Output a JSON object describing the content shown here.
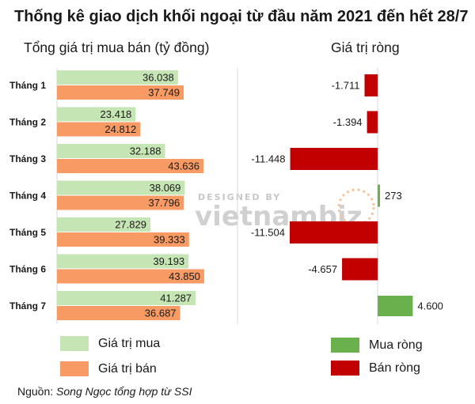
{
  "title": "Thống kê giao dịch khối ngoại từ đầu năm 2021 đến hết 28/7",
  "left_subtitle": "Tổng giá trị mua bán (tỷ đồng)",
  "right_subtitle": "Giá trị ròng",
  "watermark": {
    "top": "DESIGNED BY",
    "brand": "vietnambiz"
  },
  "source": {
    "label": "Nguồn:",
    "text": "Song Ngọc tổng hợp từ SSI"
  },
  "legend_left": [
    {
      "label": "Giá trị mua",
      "color": "#c6e5b5"
    },
    {
      "label": "Giá trị bán",
      "color": "#f79a63"
    }
  ],
  "legend_right": [
    {
      "label": "Mua ròng",
      "color": "#6ab04c"
    },
    {
      "label": "Bán ròng",
      "color": "#c20000"
    }
  ],
  "chart_data": [
    {
      "type": "bar",
      "orientation": "horizontal",
      "subtitle": "Tổng giá trị mua bán (tỷ đồng)",
      "categories": [
        "Tháng 1",
        "Tháng 2",
        "Tháng 3",
        "Tháng 4",
        "Tháng 5",
        "Tháng 6",
        "Tháng 7"
      ],
      "series": [
        {
          "name": "Giá trị mua",
          "color": "#c6e5b5",
          "values": [
            36038,
            23418,
            32188,
            38069,
            27829,
            39193,
            41287
          ],
          "labels": [
            "36.038",
            "23.418",
            "32.188",
            "38.069",
            "27.829",
            "39.193",
            "41.287"
          ]
        },
        {
          "name": "Giá trị bán",
          "color": "#f79a63",
          "values": [
            37749,
            24812,
            43636,
            37796,
            39333,
            43850,
            36687
          ],
          "labels": [
            "37.749",
            "24.812",
            "43.636",
            "37.796",
            "39.333",
            "43.850",
            "36.687"
          ]
        }
      ],
      "xlim": [
        0,
        52000
      ],
      "grid": false
    },
    {
      "type": "bar",
      "orientation": "horizontal",
      "subtitle": "Giá trị ròng",
      "categories": [
        "Tháng 1",
        "Tháng 2",
        "Tháng 3",
        "Tháng 4",
        "Tháng 5",
        "Tháng 6",
        "Tháng 7"
      ],
      "values": [
        -1711,
        -1394,
        -11448,
        273,
        -11504,
        -4657,
        4600
      ],
      "labels": [
        "-1.711",
        "-1.394",
        "-11.448",
        "273",
        "-11.504",
        "-4.657",
        "4.600"
      ],
      "positive_color": "#6ab04c",
      "negative_color": "#c20000",
      "grid": false
    }
  ]
}
